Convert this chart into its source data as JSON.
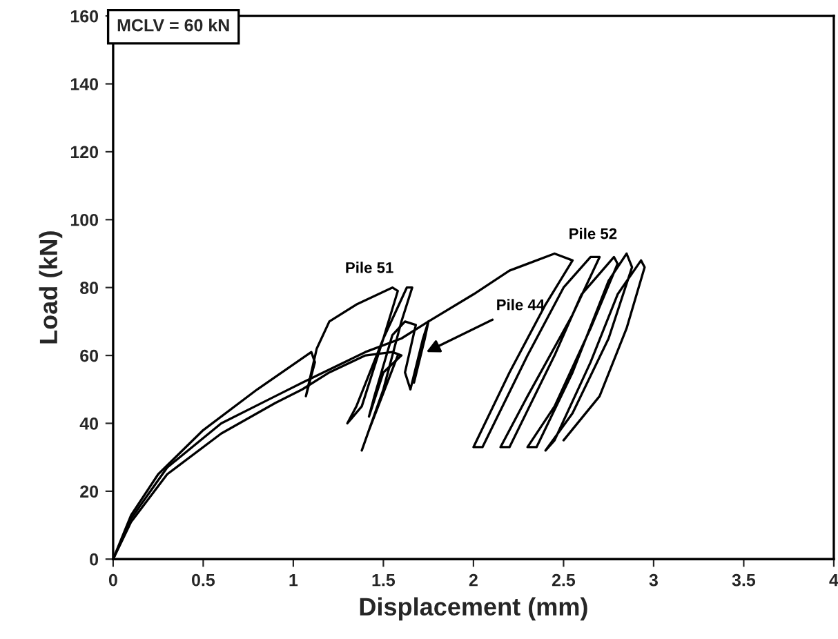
{
  "chart_data": {
    "type": "line",
    "xlabel": "Displacement (mm)",
    "ylabel": "Load (kN)",
    "xlim": [
      0,
      4
    ],
    "ylim": [
      0,
      160
    ],
    "xticks": [
      0,
      0.5,
      1,
      1.5,
      2,
      2.5,
      3,
      3.5,
      4
    ],
    "yticks": [
      0,
      20,
      40,
      60,
      80,
      100,
      120,
      140,
      160
    ],
    "grid": false,
    "legend": false,
    "marker": "none",
    "line_style": "solid",
    "annotations": [
      "MCLV = 60 kN"
    ],
    "series": [
      {
        "name": "Pile 51",
        "color": "#000000",
        "x": [
          0,
          0.1,
          0.25,
          0.5,
          0.8,
          1.1,
          1.12,
          1.07,
          1.1,
          1.13,
          1.2,
          1.35,
          1.55,
          1.58,
          1.5,
          1.38,
          1.3,
          1.35,
          1.5,
          1.63,
          1.66,
          1.6,
          1.5,
          1.38,
          1.42,
          1.58
        ],
        "values": [
          0,
          13,
          25,
          38,
          50,
          61,
          58,
          48,
          55,
          62,
          70,
          75,
          80,
          79,
          65,
          45,
          40,
          45,
          65,
          80,
          80,
          70,
          50,
          32,
          38,
          60
        ]
      },
      {
        "name": "Pile 44",
        "color": "#000000",
        "x": [
          0,
          0.1,
          0.3,
          0.6,
          0.9,
          1.05,
          1.2,
          1.4,
          1.55,
          1.6,
          1.5,
          1.42,
          1.45,
          1.55,
          1.62,
          1.68,
          1.62,
          1.65,
          1.72,
          1.75,
          1.73,
          1.67,
          1.7
        ],
        "values": [
          0,
          11,
          25,
          37,
          46,
          50,
          55,
          60,
          61,
          60,
          55,
          42,
          48,
          66,
          70,
          69,
          55,
          50,
          65,
          70,
          65,
          52,
          60
        ]
      },
      {
        "name": "Pile 52",
        "color": "#000000",
        "x": [
          0,
          0.1,
          0.3,
          0.6,
          0.9,
          1.05,
          1.4,
          1.6,
          1.75,
          2.0,
          2.2,
          2.45,
          2.55,
          2.4,
          2.2,
          2.0,
          2.05,
          2.3,
          2.5,
          2.65,
          2.7,
          2.55,
          2.3,
          2.15,
          2.2,
          2.45,
          2.6,
          2.78,
          2.8,
          2.65,
          2.45,
          2.3,
          2.35,
          2.55,
          2.75,
          2.85,
          2.88,
          2.75,
          2.55,
          2.4,
          2.45,
          2.65,
          2.8,
          2.93,
          2.95,
          2.85,
          2.7,
          2.5
        ],
        "values": [
          0,
          12,
          27,
          40,
          48,
          52,
          61,
          65,
          70,
          78,
          85,
          90,
          88,
          75,
          55,
          33,
          33,
          60,
          80,
          89,
          89,
          72,
          48,
          33,
          33,
          60,
          78,
          89,
          87,
          68,
          45,
          33,
          33,
          55,
          82,
          90,
          86,
          65,
          43,
          32,
          35,
          58,
          78,
          88,
          86,
          68,
          48,
          35
        ]
      }
    ]
  }
}
